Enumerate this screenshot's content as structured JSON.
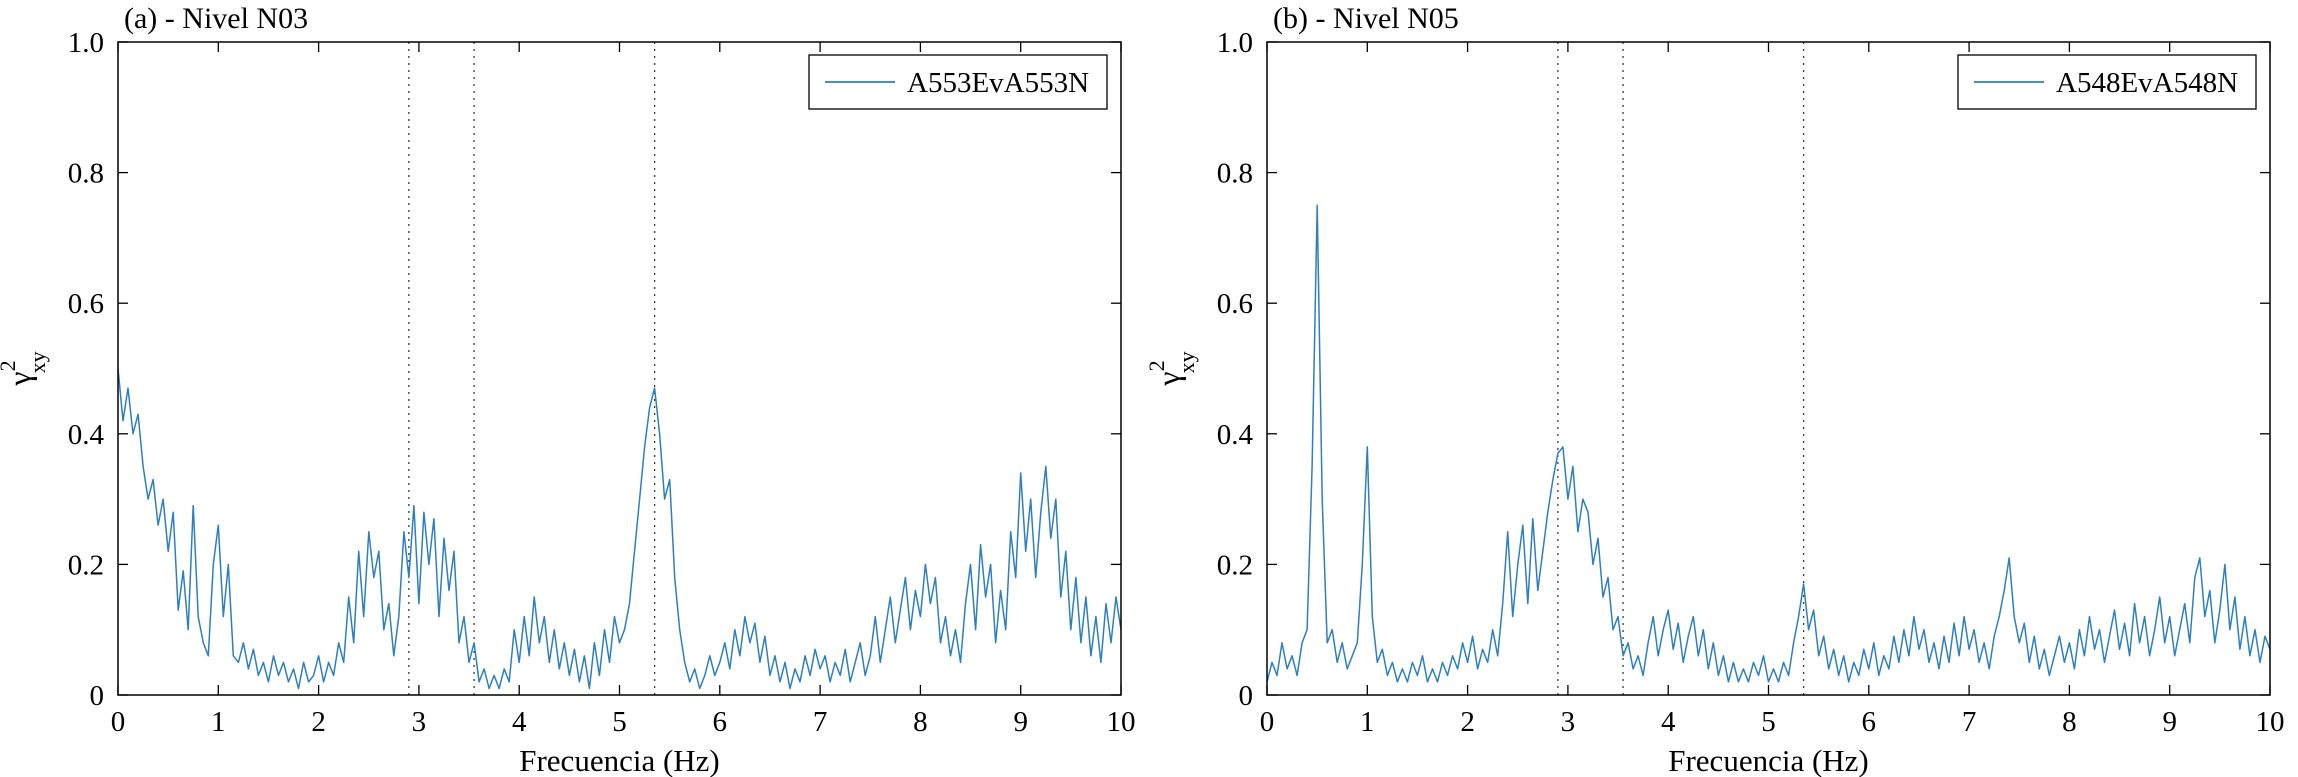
{
  "figure": {
    "background": "#ffffff",
    "line_color": "#2e7fbe",
    "vline_color": "#3a3a3a",
    "axis_color": "#000000",
    "ylabel": {
      "base": "γ",
      "sup": "2",
      "sub": "xy"
    }
  },
  "chart_data": [
    {
      "type": "line",
      "title": "(a) - Nivel N03",
      "xlabel": "Frecuencia (Hz)",
      "ylabel": "gamma^2_xy (coherence)",
      "xlim": [
        0,
        10
      ],
      "ylim": [
        0,
        1
      ],
      "grid": false,
      "legend_position": "top-right",
      "xticks": [
        0,
        1,
        2,
        3,
        4,
        5,
        6,
        7,
        8,
        9,
        10
      ],
      "xtick_labels": [
        "0",
        "1",
        "2",
        "3",
        "4",
        "5",
        "6",
        "7",
        "8",
        "9",
        "10"
      ],
      "yticks": [
        0,
        0.2,
        0.4,
        0.6,
        0.8,
        1.0
      ],
      "ytick_labels": [
        "0",
        "0.2",
        "0.4",
        "0.6",
        "0.8",
        "1.0"
      ],
      "vlines": [
        2.9,
        3.55,
        5.35
      ],
      "legend": [
        "A553EvA553N"
      ],
      "series": [
        {
          "name": "A553EvA553N",
          "x_start": 0,
          "x_step": 0.05,
          "values": [
            0.5,
            0.42,
            0.47,
            0.4,
            0.43,
            0.35,
            0.3,
            0.33,
            0.26,
            0.3,
            0.22,
            0.28,
            0.13,
            0.19,
            0.1,
            0.29,
            0.12,
            0.08,
            0.06,
            0.2,
            0.26,
            0.12,
            0.2,
            0.06,
            0.05,
            0.08,
            0.04,
            0.07,
            0.03,
            0.05,
            0.02,
            0.06,
            0.03,
            0.05,
            0.02,
            0.04,
            0.01,
            0.05,
            0.02,
            0.03,
            0.06,
            0.02,
            0.05,
            0.03,
            0.08,
            0.05,
            0.15,
            0.08,
            0.22,
            0.12,
            0.25,
            0.18,
            0.22,
            0.1,
            0.14,
            0.06,
            0.12,
            0.25,
            0.18,
            0.29,
            0.14,
            0.28,
            0.2,
            0.27,
            0.12,
            0.24,
            0.16,
            0.22,
            0.08,
            0.12,
            0.05,
            0.08,
            0.02,
            0.04,
            0.01,
            0.03,
            0.01,
            0.04,
            0.02,
            0.1,
            0.05,
            0.12,
            0.06,
            0.15,
            0.08,
            0.12,
            0.05,
            0.1,
            0.04,
            0.08,
            0.03,
            0.07,
            0.02,
            0.06,
            0.01,
            0.08,
            0.03,
            0.1,
            0.05,
            0.12,
            0.08,
            0.1,
            0.14,
            0.22,
            0.3,
            0.38,
            0.44,
            0.47,
            0.4,
            0.3,
            0.33,
            0.18,
            0.1,
            0.05,
            0.02,
            0.04,
            0.01,
            0.03,
            0.06,
            0.03,
            0.05,
            0.08,
            0.04,
            0.1,
            0.06,
            0.12,
            0.08,
            0.11,
            0.05,
            0.09,
            0.03,
            0.06,
            0.02,
            0.05,
            0.01,
            0.04,
            0.02,
            0.06,
            0.03,
            0.07,
            0.04,
            0.06,
            0.02,
            0.05,
            0.03,
            0.07,
            0.02,
            0.05,
            0.08,
            0.03,
            0.06,
            0.12,
            0.05,
            0.1,
            0.15,
            0.08,
            0.13,
            0.18,
            0.1,
            0.16,
            0.12,
            0.2,
            0.14,
            0.18,
            0.08,
            0.12,
            0.06,
            0.1,
            0.05,
            0.14,
            0.2,
            0.1,
            0.23,
            0.15,
            0.2,
            0.08,
            0.16,
            0.1,
            0.25,
            0.18,
            0.34,
            0.22,
            0.3,
            0.18,
            0.28,
            0.35,
            0.24,
            0.3,
            0.15,
            0.22,
            0.1,
            0.18,
            0.08,
            0.15,
            0.06,
            0.12,
            0.05,
            0.14,
            0.08,
            0.15,
            0.1
          ]
        }
      ]
    },
    {
      "type": "line",
      "title": "(b) - Nivel N05",
      "xlabel": "Frecuencia (Hz)",
      "ylabel": "gamma^2_xy (coherence)",
      "xlim": [
        0,
        10
      ],
      "ylim": [
        0,
        1
      ],
      "grid": false,
      "legend_position": "top-right",
      "xticks": [
        0,
        1,
        2,
        3,
        4,
        5,
        6,
        7,
        8,
        9,
        10
      ],
      "xtick_labels": [
        "0",
        "1",
        "2",
        "3",
        "4",
        "5",
        "6",
        "7",
        "8",
        "9",
        "10"
      ],
      "yticks": [
        0,
        0.2,
        0.4,
        0.6,
        0.8,
        1.0
      ],
      "ytick_labels": [
        "0",
        "0.2",
        "0.4",
        "0.6",
        "0.8",
        "1.0"
      ],
      "vlines": [
        2.9,
        3.55,
        5.35
      ],
      "legend": [
        "A548EvA548N"
      ],
      "series": [
        {
          "name": "A548EvA548N",
          "x_start": 0,
          "x_step": 0.05,
          "values": [
            0.02,
            0.05,
            0.03,
            0.08,
            0.04,
            0.06,
            0.03,
            0.08,
            0.1,
            0.35,
            0.75,
            0.3,
            0.08,
            0.1,
            0.05,
            0.08,
            0.04,
            0.06,
            0.08,
            0.2,
            0.38,
            0.12,
            0.05,
            0.07,
            0.03,
            0.05,
            0.02,
            0.04,
            0.02,
            0.05,
            0.03,
            0.06,
            0.02,
            0.04,
            0.02,
            0.05,
            0.03,
            0.06,
            0.04,
            0.08,
            0.05,
            0.09,
            0.04,
            0.07,
            0.05,
            0.1,
            0.06,
            0.14,
            0.25,
            0.12,
            0.2,
            0.26,
            0.14,
            0.27,
            0.16,
            0.22,
            0.28,
            0.33,
            0.37,
            0.38,
            0.3,
            0.35,
            0.25,
            0.3,
            0.28,
            0.2,
            0.24,
            0.15,
            0.18,
            0.1,
            0.12,
            0.06,
            0.08,
            0.04,
            0.06,
            0.03,
            0.08,
            0.12,
            0.06,
            0.1,
            0.13,
            0.07,
            0.11,
            0.05,
            0.09,
            0.12,
            0.06,
            0.1,
            0.04,
            0.08,
            0.03,
            0.06,
            0.02,
            0.05,
            0.02,
            0.04,
            0.02,
            0.05,
            0.03,
            0.06,
            0.02,
            0.04,
            0.02,
            0.05,
            0.03,
            0.08,
            0.12,
            0.17,
            0.1,
            0.13,
            0.06,
            0.09,
            0.04,
            0.07,
            0.03,
            0.06,
            0.02,
            0.05,
            0.03,
            0.07,
            0.04,
            0.08,
            0.03,
            0.06,
            0.04,
            0.09,
            0.05,
            0.1,
            0.06,
            0.12,
            0.07,
            0.1,
            0.05,
            0.08,
            0.04,
            0.09,
            0.05,
            0.11,
            0.06,
            0.12,
            0.07,
            0.1,
            0.05,
            0.08,
            0.04,
            0.09,
            0.12,
            0.16,
            0.21,
            0.12,
            0.08,
            0.11,
            0.05,
            0.09,
            0.04,
            0.07,
            0.03,
            0.06,
            0.09,
            0.05,
            0.08,
            0.04,
            0.1,
            0.06,
            0.12,
            0.07,
            0.1,
            0.05,
            0.09,
            0.13,
            0.07,
            0.11,
            0.06,
            0.14,
            0.08,
            0.12,
            0.06,
            0.1,
            0.15,
            0.08,
            0.12,
            0.06,
            0.1,
            0.14,
            0.08,
            0.18,
            0.21,
            0.12,
            0.16,
            0.08,
            0.13,
            0.2,
            0.1,
            0.15,
            0.07,
            0.12,
            0.06,
            0.1,
            0.05,
            0.09,
            0.07
          ]
        }
      ]
    }
  ]
}
